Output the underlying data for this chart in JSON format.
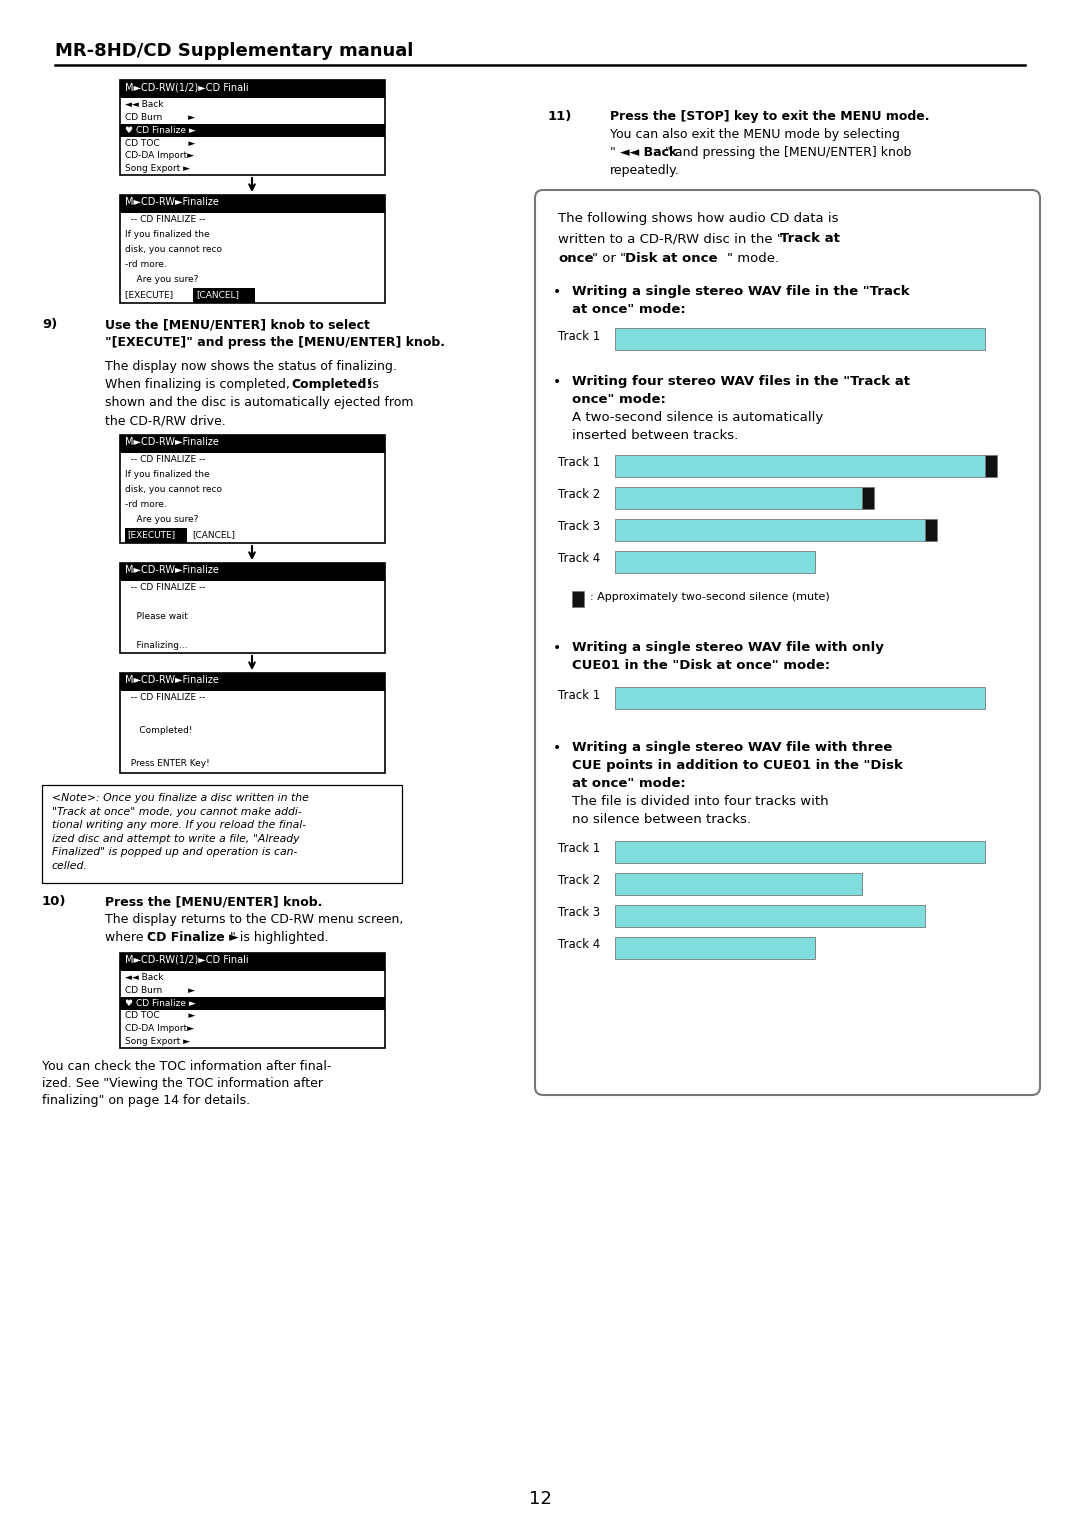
{
  "page_bg": "#ffffff",
  "header_title": "MR-8HD/CD Supplementary manual",
  "page_number": "12",
  "track_bar_color": "#7fdddd",
  "silence_bar_color": "#111111",
  "right_panel_bg": "#ffffff",
  "right_panel_border": "#888888",
  "menu1_title": "M►CD-RW(1/2)►CD Finali",
  "menu1_items": [
    "◄◄ Back",
    "CD Burn         ►",
    "♥ CD Finalize ►",
    "CD TOC          ►",
    "CD-DA Import►",
    "Song Export ►"
  ],
  "screen2_title": "M►CD-RW►Finalize",
  "screen2_body": [
    "  -- CD FINALIZE --",
    "If you finalized the",
    "disk, you cannot reco",
    "-rd more.",
    "    Are you sure?",
    "[EXECUTE] [CANCEL]"
  ],
  "screen4_title": "M►CD-RW►Finalize",
  "screen4_body": [
    "  -- CD FINALIZE --",
    "",
    "    Please wait",
    "",
    "    Finalizing..."
  ],
  "screen5_title": "M►CD-RW►Finalize",
  "screen5_body": [
    "  -- CD FINALIZE --",
    "",
    "     Completed!",
    "",
    "  Press ENTER Key!"
  ],
  "note_text": "<Note>: Once you finalize a disc written in the\n\"Track at once\" mode, you cannot make addi-\ntional writing any more. If you reload the final-\nized disc and attempt to write a file, \"Already\nFinalized\" is popped up and operation is can-\ncelled.",
  "bottom_note": "You can check the TOC information after final-\nized. See \"Viewing the TOC information after\nfinalizing\" on page 14 for details.",
  "silence_legend": ": Approximately two-second silence (mute)",
  "track_labels": [
    "Track 1",
    "Track 2",
    "Track 3",
    "Track 4"
  ]
}
